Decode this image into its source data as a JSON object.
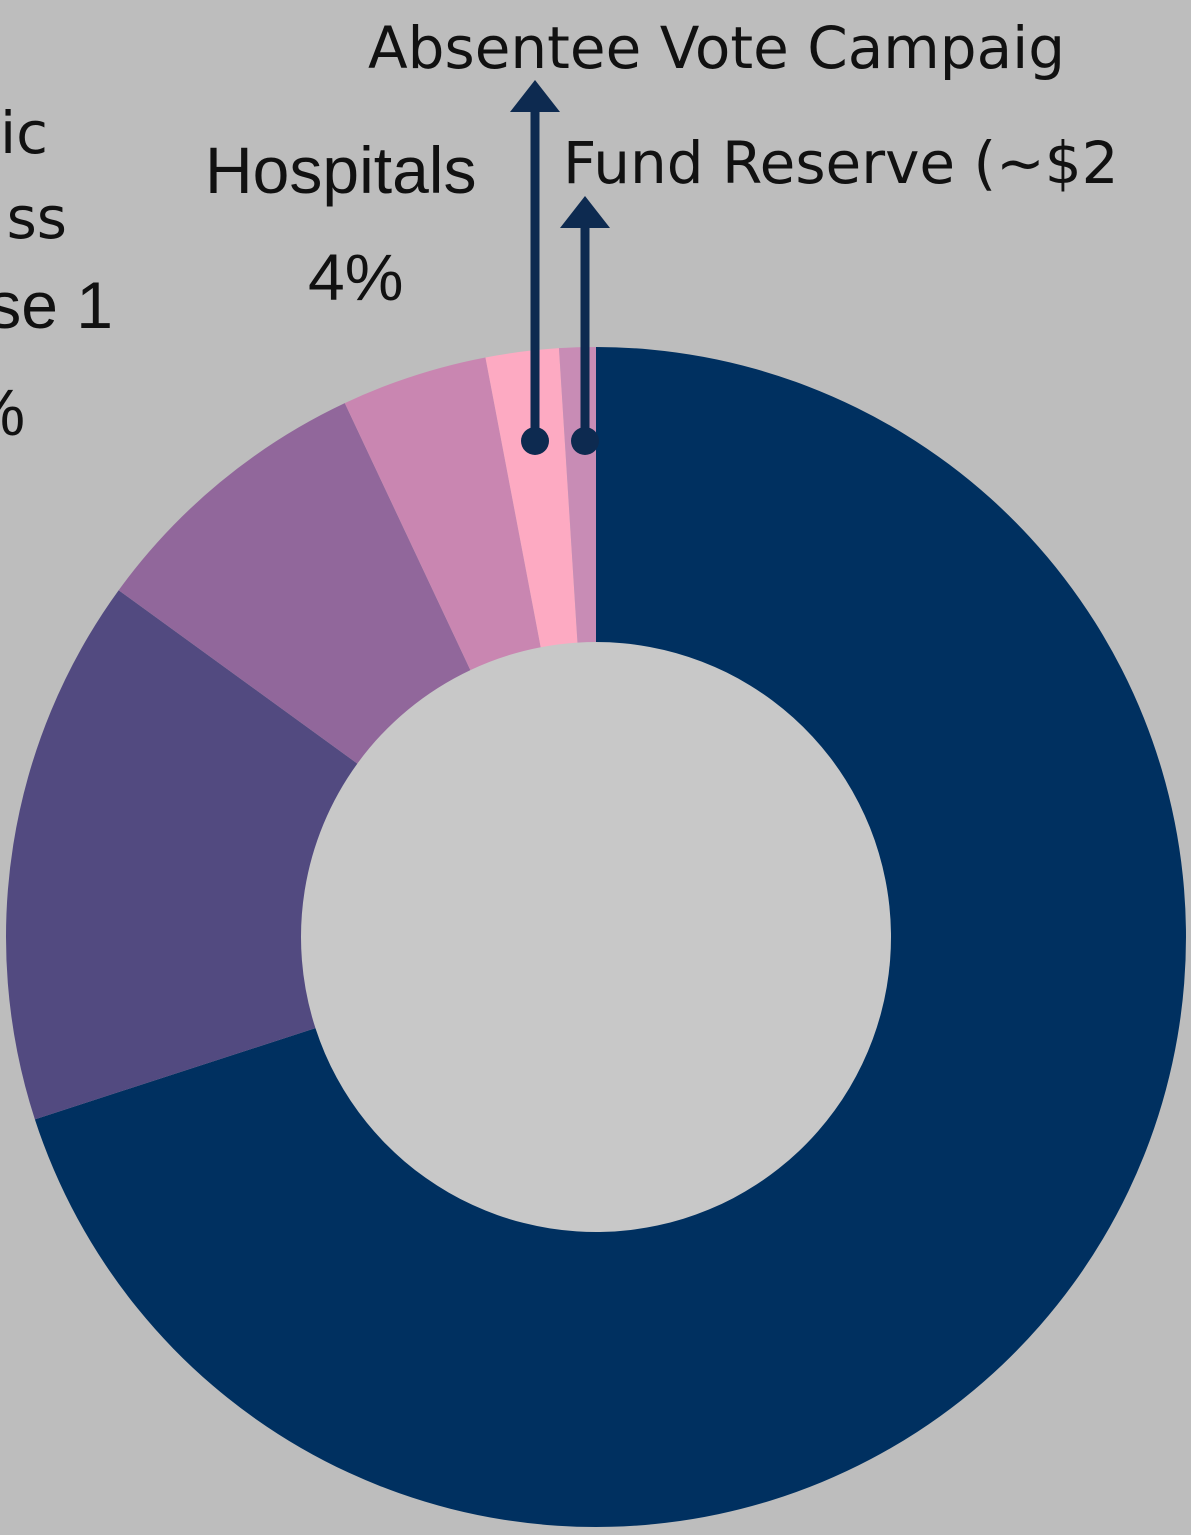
{
  "chart_data": {
    "type": "donut",
    "categories": [
      null,
      null,
      null,
      "Hospitals",
      "Absentee Vote Campaig",
      "Fund Reserve (~$2"
    ],
    "values": [
      70,
      15,
      8,
      4,
      2,
      1
    ],
    "value_labels": [
      null,
      null,
      null,
      "4%",
      null,
      null
    ],
    "colors": [
      "#003060",
      "#524a80",
      "#91679b",
      "#c986b1",
      "#fdaac2",
      "#c88cb5"
    ],
    "annotations": [
      {
        "lines": [
          "ic",
          "ss",
          "se 1",
          "%"
        ]
      }
    ]
  }
}
